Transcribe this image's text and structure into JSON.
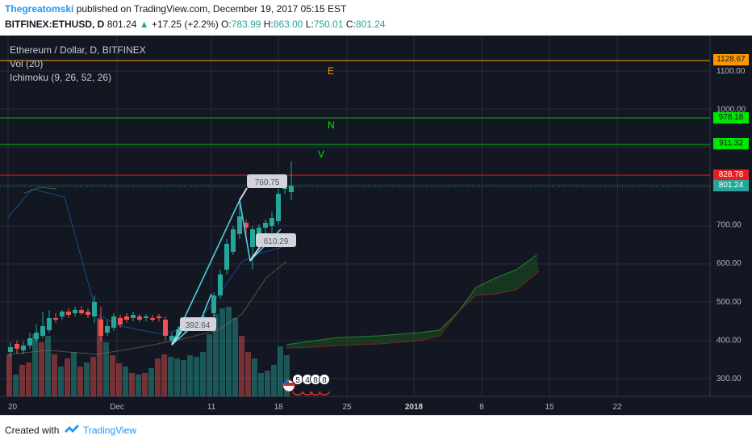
{
  "header": {
    "author": "Thegreatomski",
    "published_text": " published on TradingView.com, December 19, 2017 05:15 EST",
    "symbol": "BITFINEX:ETHUSD, D",
    "last": "801.24",
    "arrow": "▲",
    "change": "+17.25 (+2.2%)",
    "o_label": "O:",
    "o_value": "783.99",
    "h_label": "H:",
    "h_value": "863.00",
    "l_label": "L:",
    "l_value": "750.01",
    "c_label": "C:",
    "c_value": "801.24"
  },
  "legend": {
    "title": "Ethereum / Dollar, D, BITFINEX",
    "volume": "Vol (20)",
    "ichimoku": "Ichimoku (9, 26, 52, 26)"
  },
  "price_labels": [
    {
      "text": "1128.67",
      "price": 1128.67,
      "bg": "#ff9800",
      "fg": "#131722"
    },
    {
      "text": "978.18",
      "price": 978.18,
      "bg": "#00e600",
      "fg": "#131722"
    },
    {
      "text": "911.32",
      "price": 911.32,
      "bg": "#00e600",
      "fg": "#131722"
    },
    {
      "text": "828.78",
      "price": 828.78,
      "bg": "#e91e1e",
      "fg": "#ffffff"
    },
    {
      "text": "801.24",
      "price": 801.24,
      "bg": "#26a69a",
      "fg": "#ffffff"
    }
  ],
  "y_axis_ticks": [
    "1100.00",
    "1000.00",
    "700.00",
    "600.00",
    "500.00",
    "400.00",
    "300.00"
  ],
  "x_axis_ticks": [
    "20",
    "Dec",
    "11",
    "18",
    "25",
    "2018",
    "8",
    "15",
    "22"
  ],
  "annotations": {
    "letters": [
      {
        "text": "E",
        "color": "#ff9800"
      },
      {
        "text": "N",
        "color": "#00e600"
      },
      {
        "text": "V",
        "color": "#00e600"
      }
    ],
    "callouts": [
      "760.75",
      "610.29",
      "392.64"
    ]
  },
  "events": [
    "5",
    "4",
    "8",
    "8"
  ],
  "footer": {
    "created_with": "Created with",
    "brand": "TradingView"
  },
  "colors": {
    "background": "#131722",
    "up": "#26a69a",
    "down": "#ef5350",
    "wave": "#4dd0e1",
    "cloud": "#1b5e20"
  }
}
